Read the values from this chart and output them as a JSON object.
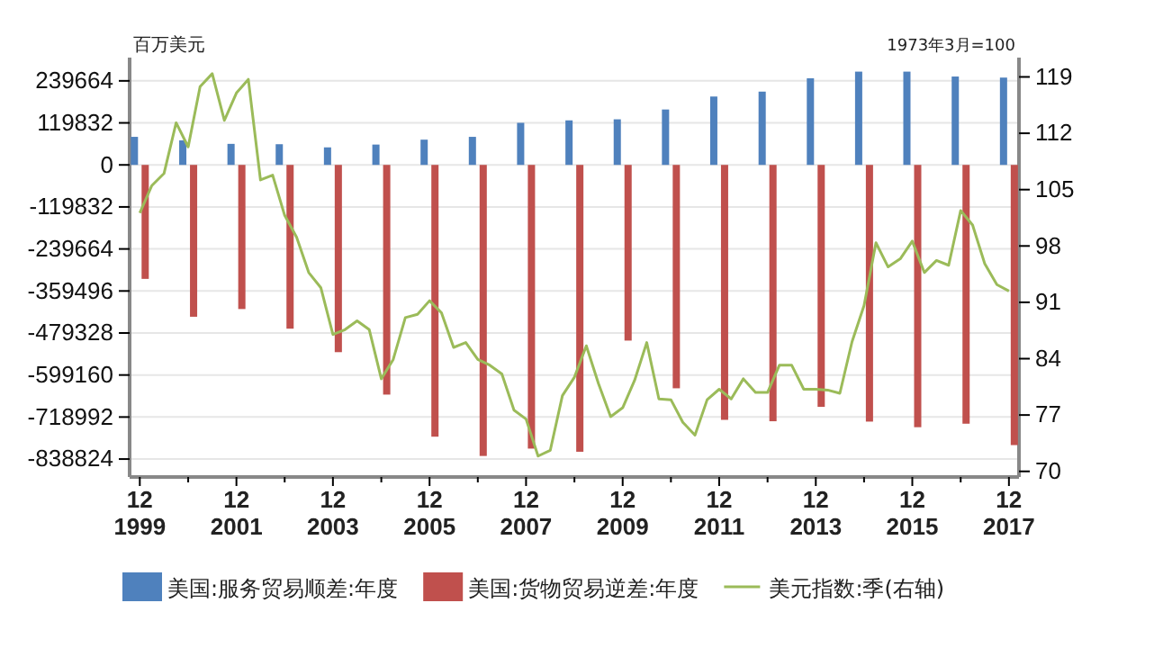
{
  "chart_data": {
    "type": "bar",
    "ylabel": "百万美元",
    "y2label": "1973年3月=100",
    "xlim": [
      "1999-09-15",
      "2018-02-15"
    ],
    "xticks": [
      {
        "value": "1999-12",
        "label": "12\n1999"
      },
      {
        "value": "2000-12",
        "label": null
      },
      {
        "value": "2001-12",
        "label": "12\n2001"
      },
      {
        "value": "2002-12",
        "label": null
      },
      {
        "value": "2003-12",
        "label": "12\n2003"
      },
      {
        "value": "2004-12",
        "label": null
      },
      {
        "value": "2005-12",
        "label": "12\n2005"
      },
      {
        "value": "2006-12",
        "label": null
      },
      {
        "value": "2007-12",
        "label": "12\n2007"
      },
      {
        "value": "2008-12",
        "label": null
      },
      {
        "value": "2009-12",
        "label": "12\n2009"
      },
      {
        "value": "2010-12",
        "label": null
      },
      {
        "value": "2011-12",
        "label": "12\n2011"
      },
      {
        "value": "2012-12",
        "label": null
      },
      {
        "value": "2013-12",
        "label": "12\n2013"
      },
      {
        "value": "2014-12",
        "label": null
      },
      {
        "value": "2015-12",
        "label": "12\n2015"
      },
      {
        "value": "2016-12",
        "label": null
      },
      {
        "value": "2017-12",
        "label": "12\n2017"
      }
    ],
    "ylim": [
      -890000,
      306000
    ],
    "yticks": [
      239664,
      119832,
      0,
      -119832,
      -239664,
      -359496,
      -479328,
      -599160,
      -718992,
      -838824
    ],
    "y2lim": [
      69.3,
      121.4
    ],
    "y2ticks": [
      70,
      77,
      84,
      91,
      98,
      105,
      112,
      119
    ],
    "grid": "y",
    "legend": "bottom",
    "series": [
      {
        "name": "美国:服务贸易顺差:年度",
        "color": "#4f81bd",
        "x": [
          "1999-12",
          "2000-12",
          "2001-12",
          "2002-12",
          "2003-12",
          "2004-12",
          "2005-12",
          "2006-12",
          "2007-12",
          "2008-12",
          "2009-12",
          "2010-12",
          "2011-12",
          "2012-12",
          "2013-12",
          "2014-12",
          "2015-12",
          "2016-12",
          "2017-12"
        ],
        "values": [
          80000,
          70000,
          60000,
          59000,
          50000,
          58000,
          72000,
          80000,
          120000,
          127000,
          130000,
          158000,
          195000,
          209000,
          247000,
          266000,
          266000,
          252000,
          249000
        ]
      },
      {
        "name": "美国:货物贸易逆差:年度",
        "color": "#c0504d",
        "x": [
          "1999-12",
          "2000-12",
          "2001-12",
          "2002-12",
          "2003-12",
          "2004-12",
          "2005-12",
          "2006-12",
          "2007-12",
          "2008-12",
          "2009-12",
          "2010-12",
          "2011-12",
          "2012-12",
          "2013-12",
          "2014-12",
          "2015-12",
          "2016-12",
          "2017-12"
        ],
        "values": [
          -325000,
          -433000,
          -411000,
          -467000,
          -534000,
          -655000,
          -775000,
          -830000,
          -809000,
          -818000,
          -501000,
          -637000,
          -727000,
          -731000,
          -690000,
          -732000,
          -748000,
          -738000,
          -799000
        ]
      },
      {
        "name": "美元指数:季(右轴)",
        "type": "line",
        "axis": "y2",
        "color": "#9bbb59",
        "x": [
          "1999-12",
          "2000-03",
          "2000-06",
          "2000-09",
          "2000-12",
          "2001-03",
          "2001-06",
          "2001-09",
          "2001-12",
          "2002-03",
          "2002-06",
          "2002-09",
          "2002-12",
          "2003-03",
          "2003-06",
          "2003-09",
          "2003-12",
          "2004-03",
          "2004-06",
          "2004-09",
          "2004-12",
          "2005-03",
          "2005-06",
          "2005-09",
          "2005-12",
          "2006-03",
          "2006-06",
          "2006-09",
          "2006-12",
          "2007-03",
          "2007-06",
          "2007-09",
          "2007-12",
          "2008-03",
          "2008-06",
          "2008-09",
          "2008-12",
          "2009-03",
          "2009-06",
          "2009-09",
          "2009-12",
          "2010-03",
          "2010-06",
          "2010-09",
          "2010-12",
          "2011-03",
          "2011-06",
          "2011-09",
          "2011-12",
          "2012-03",
          "2012-06",
          "2012-09",
          "2012-12",
          "2013-03",
          "2013-06",
          "2013-09",
          "2013-12",
          "2014-03",
          "2014-06",
          "2014-09",
          "2014-12",
          "2015-03",
          "2015-06",
          "2015-09",
          "2015-12",
          "2016-03",
          "2016-06",
          "2016-09",
          "2016-12",
          "2017-03",
          "2017-06",
          "2017-09",
          "2017-12"
        ],
        "values": [
          102.1,
          105.5,
          107.0,
          113.3,
          110.3,
          117.8,
          119.4,
          113.6,
          117.0,
          118.7,
          106.2,
          106.8,
          101.8,
          99.1,
          94.7,
          92.8,
          87.0,
          87.6,
          88.7,
          87.6,
          81.5,
          83.9,
          89.1,
          89.5,
          91.2,
          89.7,
          85.4,
          86.0,
          83.9,
          83.2,
          82.1,
          77.6,
          76.5,
          71.9,
          72.6,
          79.4,
          81.7,
          85.6,
          80.9,
          76.8,
          77.9,
          81.3,
          86.0,
          79.0,
          78.9,
          76.1,
          74.5,
          78.9,
          80.2,
          79.0,
          81.5,
          79.8,
          79.8,
          83.2,
          83.2,
          80.2,
          80.2,
          80.1,
          79.7,
          86.1,
          90.6,
          98.4,
          95.4,
          96.4,
          98.6,
          94.7,
          96.2,
          95.6,
          102.4,
          100.6,
          95.8,
          93.2,
          92.4
        ]
      }
    ]
  }
}
